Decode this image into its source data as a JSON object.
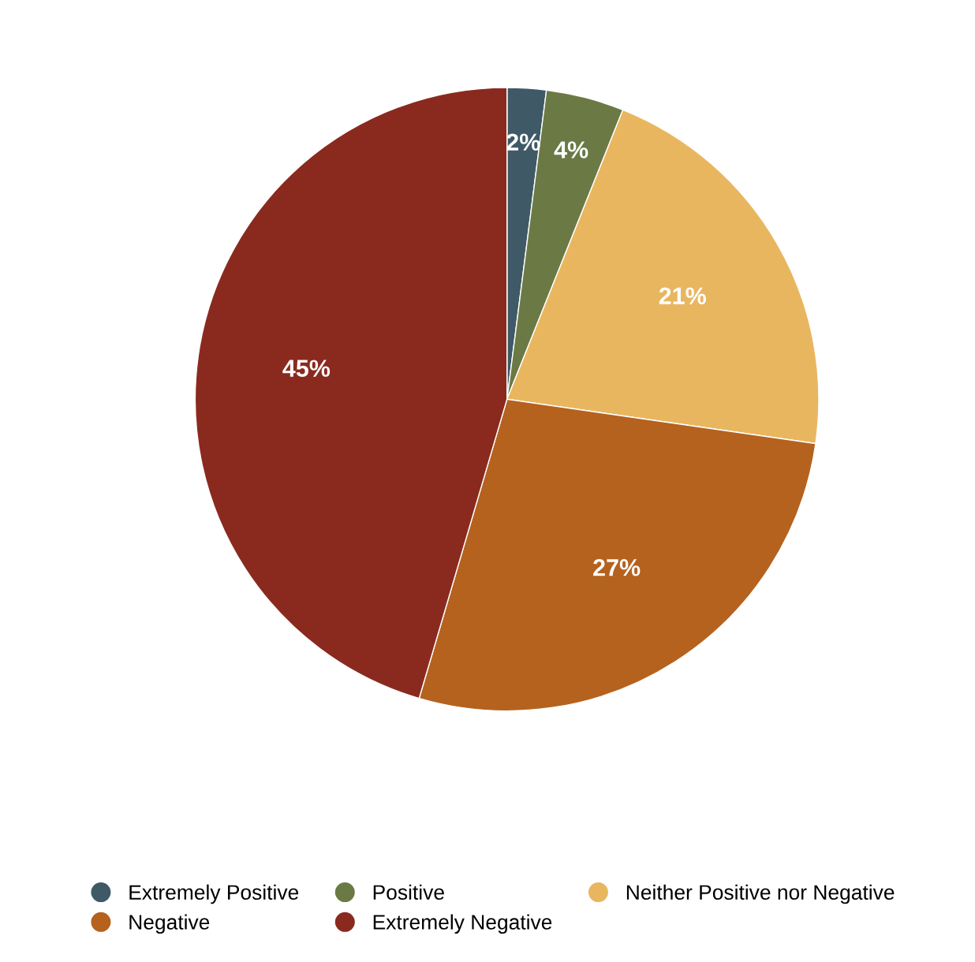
{
  "chart_data": {
    "type": "pie",
    "categories": [
      "Extremely Positive",
      "Positive",
      "Neither Positive nor Negative",
      "Negative",
      "Extremely Negative"
    ],
    "values": [
      2,
      4,
      21,
      27,
      45
    ],
    "colors": [
      "#3f5a66",
      "#6b7a45",
      "#e9b660",
      "#b5621f",
      "#8a2a1f"
    ],
    "value_labels": [
      "2%",
      "4%",
      "21%",
      "27%",
      "45%"
    ],
    "legend": "bottom"
  }
}
